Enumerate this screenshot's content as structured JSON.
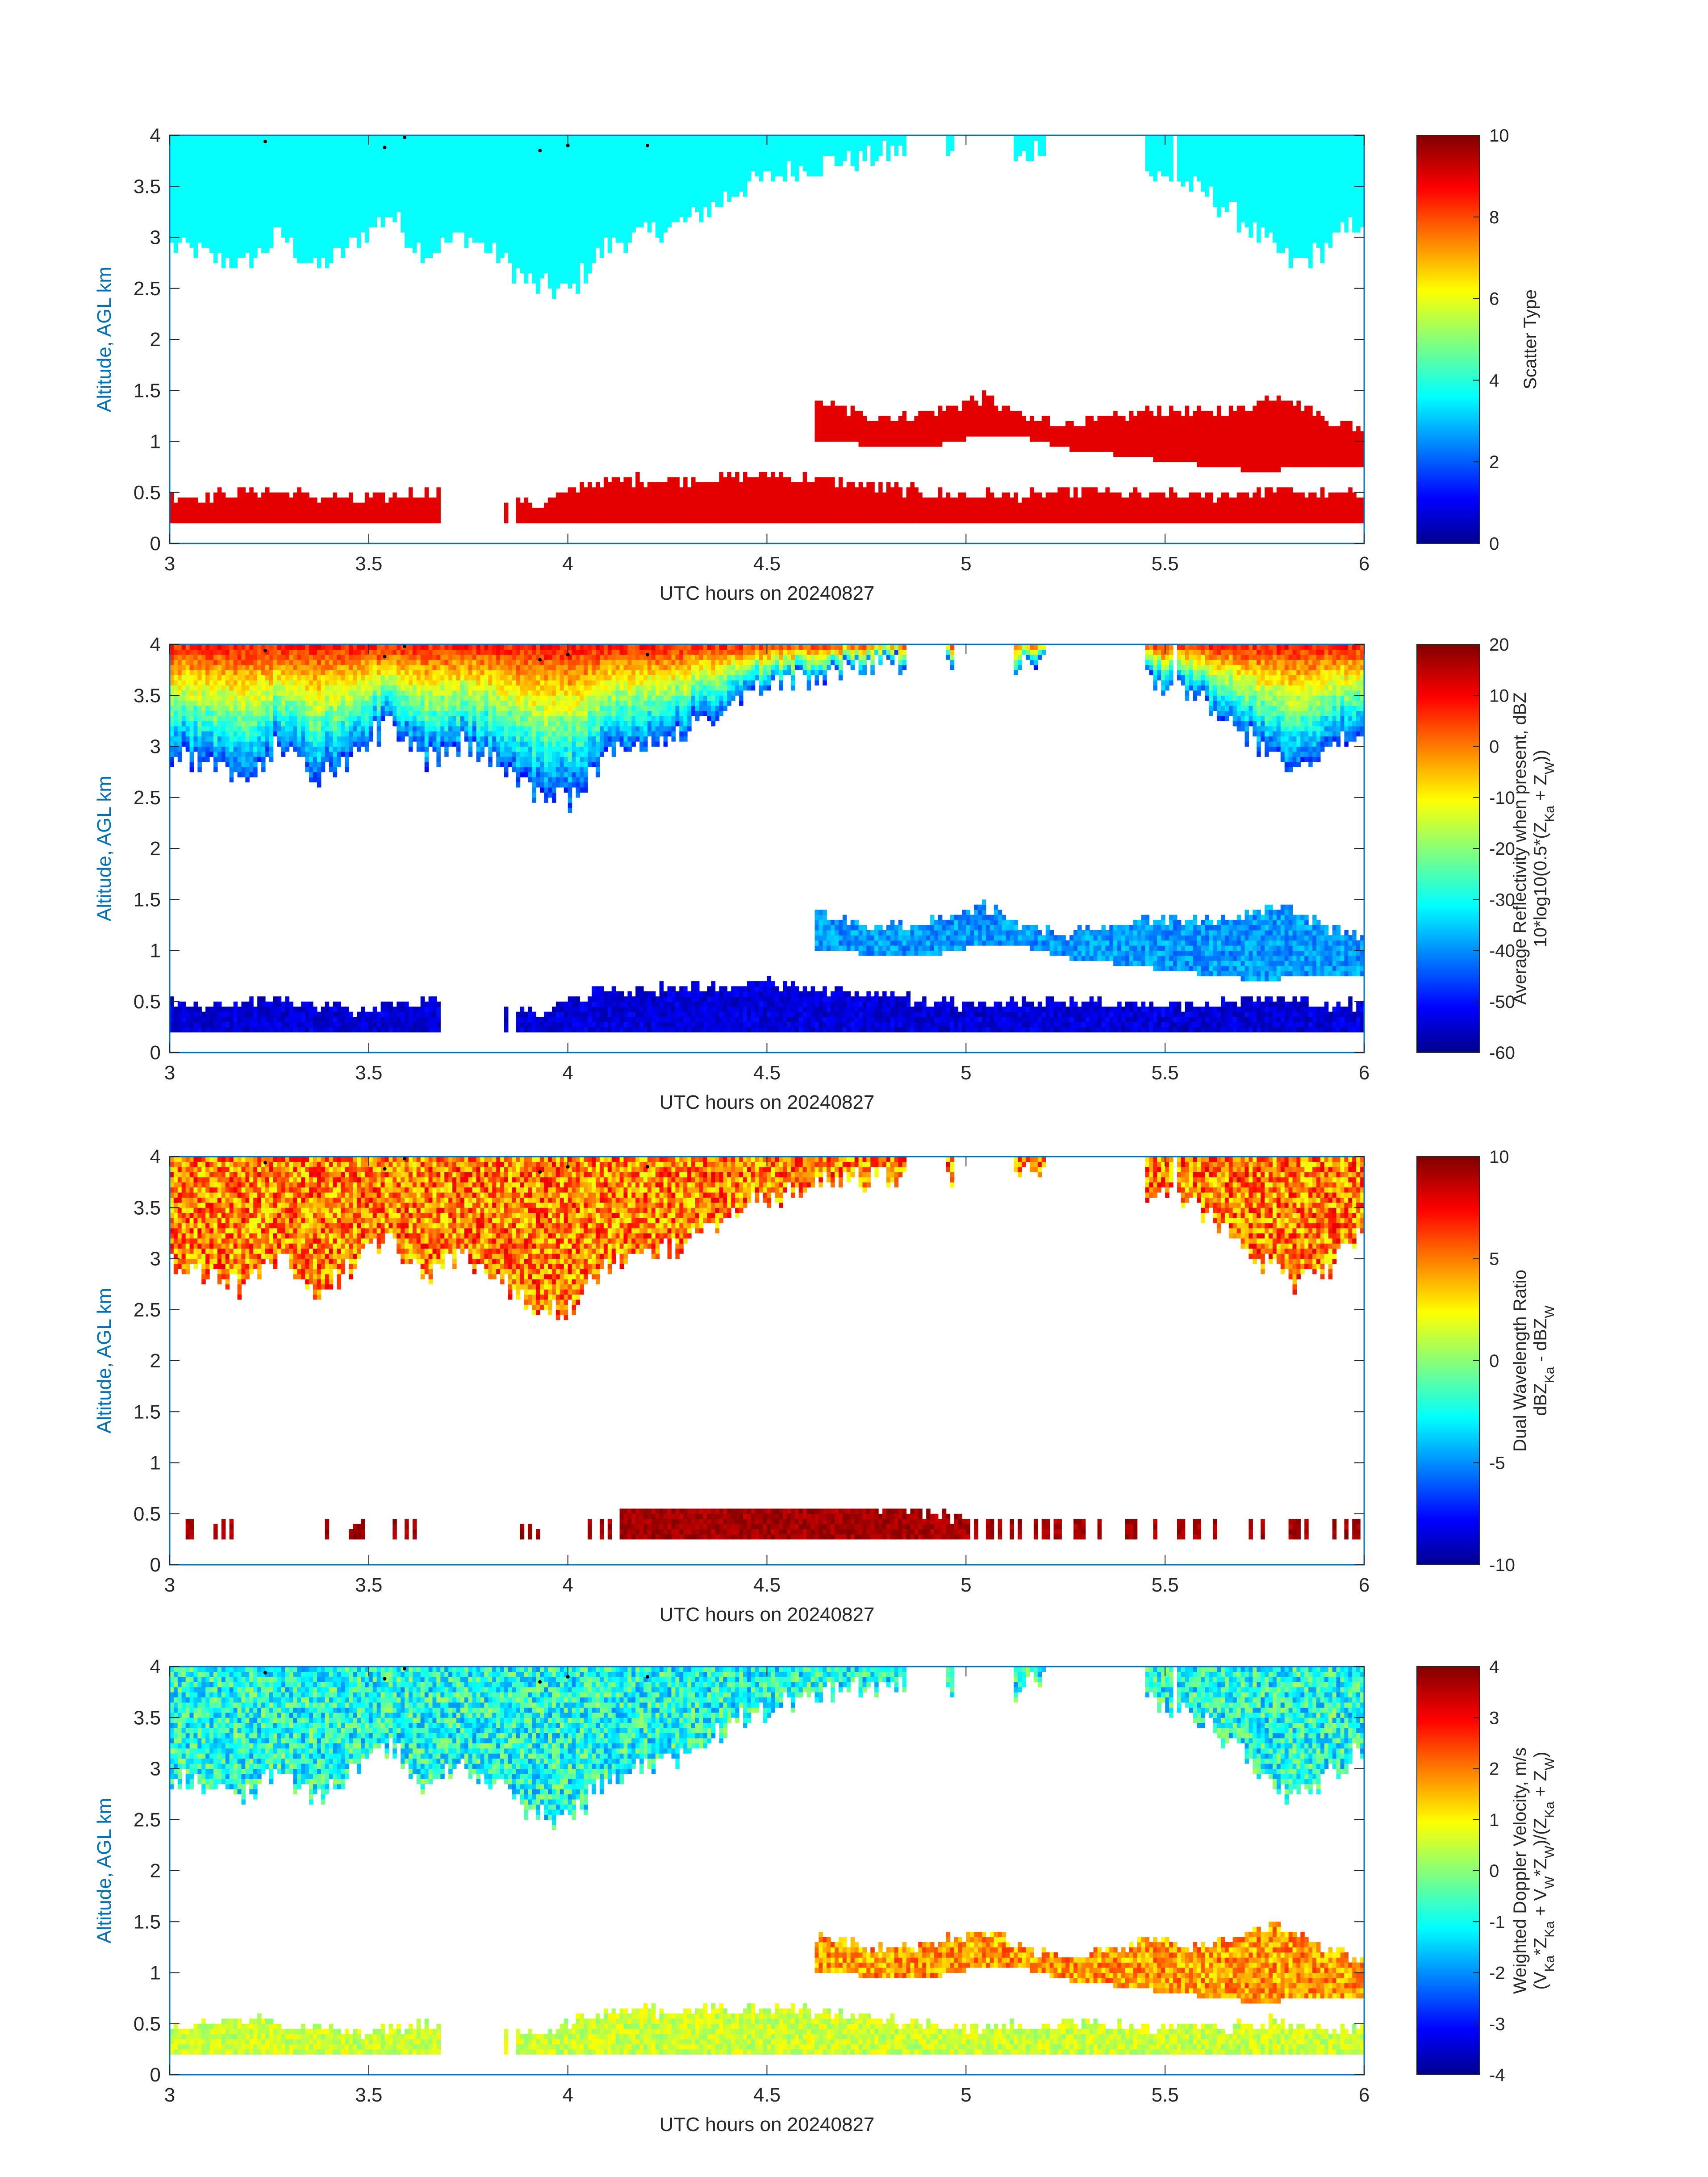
{
  "chart_data": [
    {
      "type": "heatmap",
      "variable": "scatter_type",
      "xlabel": "UTC hours on 20240827",
      "ylabel": "Altitude, AGL km",
      "xlim": [
        3,
        6
      ],
      "ylim": [
        0,
        4
      ],
      "xticks": [
        "3",
        "3.5",
        "4",
        "4.5",
        "5",
        "5.5",
        "6"
      ],
      "yticks": [
        "0",
        "0.5",
        "1",
        "1.5",
        "2",
        "2.5",
        "3",
        "3.5",
        "4"
      ],
      "colorbar": {
        "label_lines": [
          "Scatter Type"
        ],
        "ticks": [
          "0",
          "2",
          "4",
          "6",
          "8",
          "10"
        ],
        "range": [
          0,
          10
        ],
        "colormap": "jet"
      },
      "layers": [
        {
          "name": "upper cloud",
          "class_value": 3.8,
          "x_start": 3.0,
          "x_end": 6.0,
          "base_km": [
            2.9,
            2.8,
            2.7,
            3.0,
            2.65,
            2.9,
            3.2,
            2.8,
            3.0,
            2.8,
            2.5,
            2.45,
            2.9,
            3.0,
            3.1,
            3.3,
            3.5,
            3.6,
            3.7,
            3.75,
            3.8,
            3.85,
            3.7,
            3.6,
            3.9,
            3.8,
            3.7,
            3.6,
            3.5,
            3.3,
            3.0,
            2.7,
            2.9,
            3.2
          ],
          "gaps": [
            [
              4.85,
              4.95
            ],
            [
              4.97,
              5.12
            ],
            [
              5.2,
              5.45
            ],
            [
              5.52,
              5.53
            ]
          ]
        },
        {
          "name": "mid layer",
          "class_value": 9.0,
          "x_start": 4.62,
          "x_end": 6.0,
          "base_km": [
            1.0,
            0.95,
            0.9,
            0.95,
            1.05,
            1.0,
            0.9,
            0.85,
            0.8,
            0.75,
            0.7,
            0.7,
            0.75,
            0.7
          ],
          "top_km": [
            1.35,
            1.25,
            1.2,
            1.3,
            1.4,
            1.2,
            1.15,
            1.2,
            1.3,
            1.25,
            1.3,
            1.45,
            1.2,
            1.1
          ]
        },
        {
          "name": "boundary layer",
          "class_value": 9.0,
          "x_start": 3.0,
          "x_end": 6.0,
          "base_km": 0.2,
          "top_km": [
            0.45,
            0.45,
            0.5,
            0.45,
            0.4,
            0.45,
            0.5,
            0.45,
            0.35,
            0.55,
            0.6,
            0.6,
            0.62,
            0.65,
            0.6,
            0.55,
            0.5,
            0.45,
            0.45,
            0.45,
            0.5,
            0.45,
            0.45,
            0.45,
            0.5,
            0.45,
            0.45
          ],
          "gaps": [
            [
              3.68,
              3.84
            ],
            [
              3.85,
              3.87
            ]
          ]
        }
      ],
      "markers": [
        {
          "x": 3.24,
          "y": 3.94
        },
        {
          "x": 3.54,
          "y": 3.88
        },
        {
          "x": 3.59,
          "y": 3.98
        },
        {
          "x": 3.93,
          "y": 3.85
        },
        {
          "x": 4.0,
          "y": 3.9
        },
        {
          "x": 4.2,
          "y": 3.9
        }
      ]
    },
    {
      "type": "heatmap",
      "variable": "average_reflectivity",
      "xlabel": "UTC hours on 20240827",
      "ylabel": "Altitude, AGL km",
      "xlim": [
        3,
        6
      ],
      "ylim": [
        0,
        4
      ],
      "xticks": [
        "3",
        "3.5",
        "4",
        "4.5",
        "5",
        "5.5",
        "6"
      ],
      "yticks": [
        "0",
        "0.5",
        "1",
        "1.5",
        "2",
        "2.5",
        "3",
        "3.5",
        "4"
      ],
      "colorbar": {
        "label_lines": [
          "Average Reflectivity when present, dBZ",
          "10*log10(0.5*(Z{Ka} + Z{W}))"
        ],
        "ticks": [
          "-60",
          "-50",
          "-40",
          "-30",
          "-20",
          "-10",
          "0",
          "10",
          "20"
        ],
        "range": [
          -60,
          20
        ],
        "colormap": "jet"
      },
      "value_summary": {
        "upper_cloud_top_dBZ": 10,
        "upper_cloud_base_dBZ": -45,
        "mid_layer_dBZ": -38,
        "boundary_layer_dBZ": -53
      }
    },
    {
      "type": "heatmap",
      "variable": "dual_wavelength_ratio",
      "xlabel": "UTC hours on 20240827",
      "ylabel": "Altitude, AGL km",
      "xlim": [
        3,
        6
      ],
      "ylim": [
        0,
        4
      ],
      "xticks": [
        "3",
        "3.5",
        "4",
        "4.5",
        "5",
        "5.5",
        "6"
      ],
      "yticks": [
        "0",
        "0.5",
        "1",
        "1.5",
        "2",
        "2.5",
        "3",
        "3.5",
        "4"
      ],
      "colorbar": {
        "label_lines": [
          "Dual Wavelength Ratio",
          "dBZ{Ka} - dBZ{W}"
        ],
        "ticks": [
          "-10",
          "-5",
          "0",
          "5",
          "10"
        ],
        "range": [
          -10,
          10
        ],
        "colormap": "jet"
      },
      "value_summary": {
        "upper_cloud_DWR_dB": 5,
        "boundary_layer_DWR_dB": 10
      }
    },
    {
      "type": "heatmap",
      "variable": "weighted_doppler_velocity",
      "xlabel": "UTC hours on 20240827",
      "ylabel": "Altitude, AGL km",
      "xlim": [
        3,
        6
      ],
      "ylim": [
        0,
        4
      ],
      "xticks": [
        "3",
        "3.5",
        "4",
        "4.5",
        "5",
        "5.5",
        "6"
      ],
      "yticks": [
        "0",
        "0.5",
        "1",
        "1.5",
        "2",
        "2.5",
        "3",
        "3.5",
        "4"
      ],
      "colorbar": {
        "label_lines": [
          "Weighted Doppler Velocity, m/s",
          "(V{Ka}*Z{Ka} + V{W}*Z{W})/(Z{Ka} + Z{W})"
        ],
        "ticks": [
          "-4",
          "-3",
          "-2",
          "-1",
          "0",
          "1",
          "2",
          "3",
          "4"
        ],
        "range": [
          -4,
          4
        ],
        "colormap": "jet"
      },
      "value_summary": {
        "upper_cloud_velocity_ms": -0.8,
        "mid_layer_velocity_ms": 1.8,
        "boundary_layer_velocity_ms": 0.6
      }
    }
  ]
}
